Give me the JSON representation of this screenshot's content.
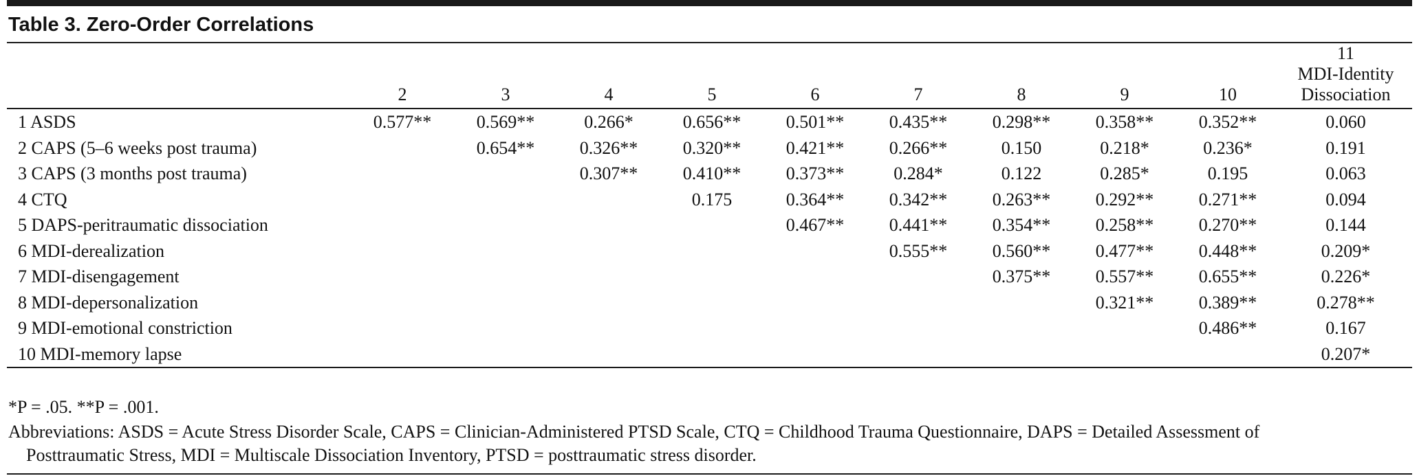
{
  "title": "Table 3. Zero-Order Correlations",
  "table": {
    "columns": [
      "2",
      "3",
      "4",
      "5",
      "6",
      "7",
      "8",
      "9",
      "10"
    ],
    "last_column": {
      "number": "11",
      "label": [
        "MDI-Identity",
        "Dissociation"
      ]
    },
    "rows": [
      {
        "label": "1 ASDS",
        "cells": [
          "0.577**",
          "0.569**",
          "0.266*",
          "0.656**",
          "0.501**",
          "0.435**",
          "0.298**",
          "0.358**",
          "0.352**",
          "0.060"
        ]
      },
      {
        "label": "2 CAPS (5–6 weeks post trauma)",
        "cells": [
          null,
          "0.654**",
          "0.326**",
          "0.320**",
          "0.421**",
          "0.266**",
          "0.150",
          "0.218*",
          "0.236*",
          "0.191"
        ]
      },
      {
        "label": "3 CAPS (3 months post trauma)",
        "cells": [
          null,
          null,
          "0.307**",
          "0.410**",
          "0.373**",
          "0.284*",
          "0.122",
          "0.285*",
          "0.195",
          "0.063"
        ]
      },
      {
        "label": "4 CTQ",
        "cells": [
          null,
          null,
          null,
          "0.175",
          "0.364**",
          "0.342**",
          "0.263**",
          "0.292**",
          "0.271**",
          "0.094"
        ]
      },
      {
        "label": "5 DAPS-peritraumatic dissociation",
        "cells": [
          null,
          null,
          null,
          null,
          "0.467**",
          "0.441**",
          "0.354**",
          "0.258**",
          "0.270**",
          "0.144"
        ]
      },
      {
        "label": "6 MDI-derealization",
        "cells": [
          null,
          null,
          null,
          null,
          null,
          "0.555**",
          "0.560**",
          "0.477**",
          "0.448**",
          "0.209*"
        ]
      },
      {
        "label": "7 MDI-disengagement",
        "cells": [
          null,
          null,
          null,
          null,
          null,
          null,
          "0.375**",
          "0.557**",
          "0.655**",
          "0.226*"
        ]
      },
      {
        "label": "8 MDI-depersonalization",
        "cells": [
          null,
          null,
          null,
          null,
          null,
          null,
          null,
          "0.321**",
          "0.389**",
          "0.278**"
        ]
      },
      {
        "label": "9 MDI-emotional constriction",
        "cells": [
          null,
          null,
          null,
          null,
          null,
          null,
          null,
          null,
          "0.486**",
          "0.167"
        ]
      },
      {
        "label": "10 MDI-memory lapse",
        "cells": [
          null,
          null,
          null,
          null,
          null,
          null,
          null,
          null,
          null,
          "0.207*"
        ]
      }
    ]
  },
  "footnotes": [
    "*P = .05. **P = .001.",
    "Abbreviations: ASDS = Acute Stress Disorder Scale, CAPS = Clinician-Administered PTSD Scale, CTQ = Childhood Trauma Questionnaire, DAPS = Detailed Assessment of Posttraumatic Stress, MDI = Multiscale Dissociation Inventory, PTSD = posttraumatic stress disorder."
  ]
}
